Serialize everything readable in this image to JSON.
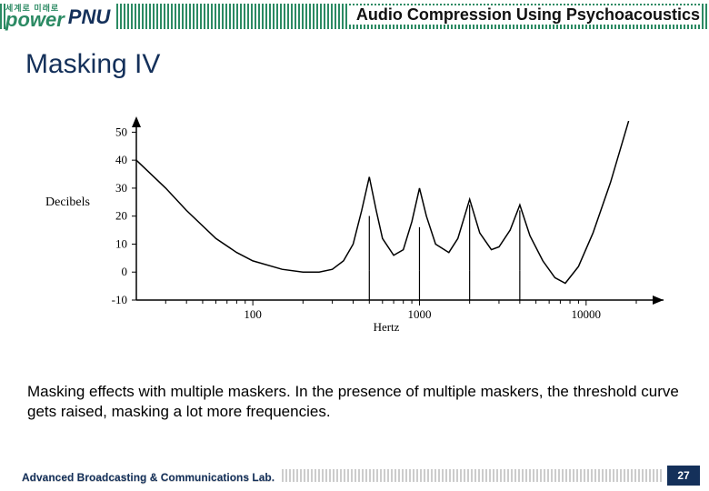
{
  "header": {
    "power_tag": "세계로 미래로",
    "power_word": "power",
    "pnu": "PNU",
    "title": "Audio Compression Using Psychoacoustics"
  },
  "slide_title": "Masking IV",
  "chart": {
    "type": "line",
    "xscale": "log",
    "xlim": [
      20,
      20000
    ],
    "xlabel": "Hertz",
    "x_major_ticks": [
      100,
      1000,
      10000
    ],
    "x_minor_ticks": [
      30,
      40,
      50,
      60,
      70,
      80,
      90,
      200,
      300,
      400,
      500,
      600,
      700,
      800,
      900,
      2000,
      3000,
      4000,
      5000,
      6000,
      7000,
      8000,
      9000,
      20000
    ],
    "ylim": [
      -10,
      55
    ],
    "ylabel": "Decibels",
    "y_ticks": [
      -10,
      0,
      10,
      20,
      30,
      40,
      50
    ],
    "line_color": "#000000",
    "line_width": 1.5,
    "background_color": "#ffffff",
    "masker_freqs_hz": [
      500,
      1000,
      2000,
      4000
    ],
    "masker_tick_y": -3,
    "curve": [
      [
        20,
        40
      ],
      [
        30,
        30
      ],
      [
        40,
        22
      ],
      [
        60,
        12
      ],
      [
        80,
        7
      ],
      [
        100,
        4
      ],
      [
        150,
        1
      ],
      [
        200,
        0
      ],
      [
        250,
        0
      ],
      [
        300,
        1
      ],
      [
        350,
        4
      ],
      [
        400,
        10
      ],
      [
        450,
        22
      ],
      [
        500,
        34
      ],
      [
        550,
        22
      ],
      [
        600,
        12
      ],
      [
        700,
        6
      ],
      [
        800,
        8
      ],
      [
        900,
        18
      ],
      [
        1000,
        30
      ],
      [
        1100,
        20
      ],
      [
        1250,
        10
      ],
      [
        1500,
        7
      ],
      [
        1700,
        12
      ],
      [
        2000,
        26
      ],
      [
        2300,
        14
      ],
      [
        2700,
        8
      ],
      [
        3000,
        9
      ],
      [
        3500,
        15
      ],
      [
        4000,
        24
      ],
      [
        4600,
        13
      ],
      [
        5500,
        4
      ],
      [
        6500,
        -2
      ],
      [
        7500,
        -4
      ],
      [
        9000,
        2
      ],
      [
        11000,
        14
      ],
      [
        14000,
        32
      ],
      [
        18000,
        54
      ]
    ]
  },
  "caption": "Masking effects with multiple maskers. In the presence of multiple maskers, the threshold curve gets raised, masking a lot more frequencies.",
  "footer": {
    "lab": "Advanced Broadcasting & Communications Lab.",
    "page": "27"
  },
  "colors": {
    "green": "#2b8a63",
    "navy": "#14305a"
  }
}
